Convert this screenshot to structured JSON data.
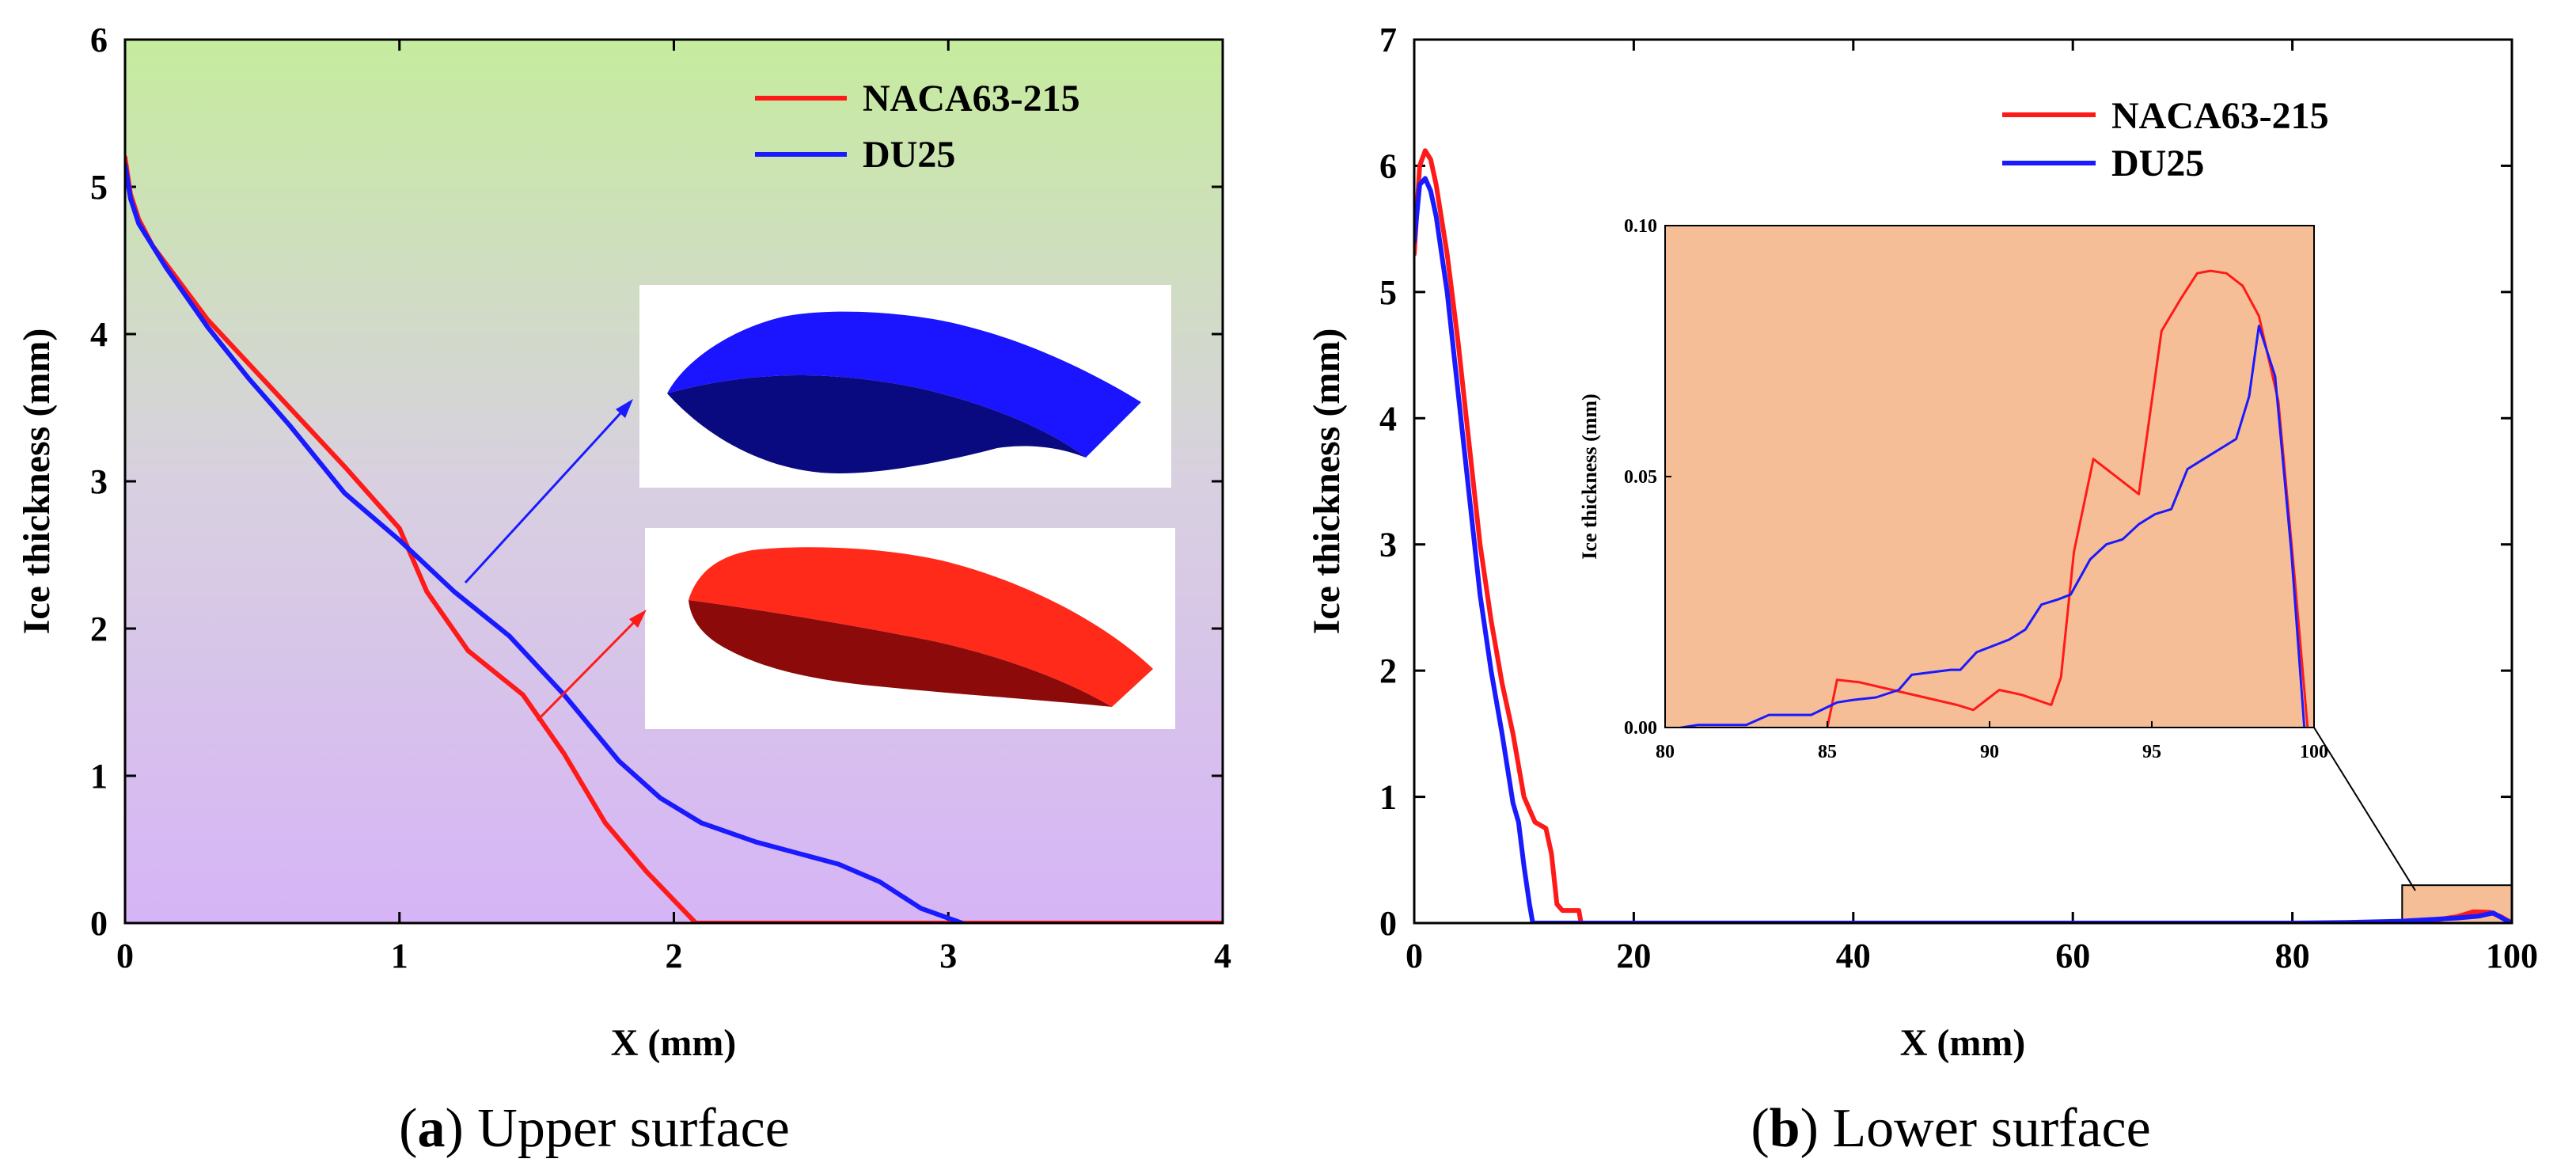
{
  "colors": {
    "naca": "#ff1a1a",
    "du": "#1a1aff",
    "bg_top": "#c6ec9e",
    "bg_mid": "#d8d0e0",
    "bg_bottom": "#d6b4f6",
    "inset_bg": "#f6be96",
    "naca_foil_light": "#ff2a1a",
    "naca_foil_dark": "#8c0a0a",
    "du_foil_light": "#1a14ff",
    "du_foil_dark": "#0a0a80"
  },
  "panels": {
    "a": {
      "caption_letter": "a",
      "caption_text": "Upper surface"
    },
    "b": {
      "caption_letter": "b",
      "caption_text": "Lower surface"
    }
  },
  "chart_data": [
    {
      "id": "a",
      "type": "line",
      "title": "(a) Upper surface",
      "xlabel": "X (mm)",
      "ylabel": "Ice thickness (mm)",
      "xlim": [
        0,
        4
      ],
      "ylim": [
        0,
        6
      ],
      "xticks": [
        0,
        1,
        2,
        3,
        4
      ],
      "yticks": [
        0,
        1,
        2,
        3,
        4,
        5,
        6
      ],
      "legend_position": "top-right",
      "background": "vertical gradient green-top to purple-bottom",
      "series": [
        {
          "name": "NACA63-215",
          "x": [
            0,
            0.02,
            0.05,
            0.1,
            0.2,
            0.3,
            0.45,
            0.6,
            0.8,
            1.0,
            1.1,
            1.25,
            1.45,
            1.6,
            1.75,
            1.9,
            2.08,
            2.5,
            3.0,
            3.5,
            4.0
          ],
          "y": [
            5.2,
            4.95,
            4.78,
            4.6,
            4.35,
            4.1,
            3.8,
            3.5,
            3.1,
            2.68,
            2.25,
            1.85,
            1.55,
            1.15,
            0.68,
            0.35,
            0.0,
            0.0,
            0.0,
            0.0,
            0.0
          ]
        },
        {
          "name": "DU25",
          "x": [
            0,
            0.02,
            0.05,
            0.15,
            0.3,
            0.45,
            0.6,
            0.8,
            1.0,
            1.2,
            1.4,
            1.6,
            1.8,
            1.95,
            2.1,
            2.3,
            2.5,
            2.6,
            2.75,
            2.9,
            3.05
          ],
          "y": [
            5.15,
            4.92,
            4.75,
            4.45,
            4.05,
            3.7,
            3.38,
            2.92,
            2.6,
            2.25,
            1.95,
            1.55,
            1.1,
            0.85,
            0.68,
            0.55,
            0.45,
            0.4,
            0.28,
            0.1,
            0.0
          ]
        }
      ],
      "annotations": [
        {
          "label": "DU25 iced airfoil rendering",
          "target": [
            1.25,
            2.32
          ]
        },
        {
          "label": "NACA63-215 iced airfoil rendering",
          "target": [
            1.5,
            1.4
          ]
        }
      ]
    },
    {
      "id": "b",
      "type": "line",
      "title": "(b) Lower surface",
      "xlabel": "X (mm)",
      "ylabel": "Ice thickness (mm)",
      "xlim": [
        0,
        100
      ],
      "ylim": [
        0,
        7
      ],
      "xticks": [
        0,
        20,
        40,
        60,
        80,
        100
      ],
      "yticks": [
        0,
        1,
        2,
        3,
        4,
        5,
        6,
        7
      ],
      "legend_position": "top-right",
      "series": [
        {
          "name": "NACA63-215",
          "x": [
            0,
            0.5,
            1,
            1.5,
            2,
            3,
            4,
            5,
            6,
            7,
            8,
            9,
            10,
            11,
            12,
            12.5,
            13,
            13.5,
            14,
            15,
            15.2,
            20,
            40,
            60,
            80,
            90,
            92,
            95,
            96.5,
            98,
            99,
            100
          ],
          "y": [
            5.3,
            6.0,
            6.12,
            6.05,
            5.85,
            5.3,
            4.6,
            3.8,
            3.0,
            2.4,
            1.9,
            1.5,
            1.0,
            0.8,
            0.75,
            0.55,
            0.15,
            0.1,
            0.1,
            0.1,
            0.0,
            0.0,
            0.0,
            0.0,
            0.0,
            0.0,
            0.01,
            0.05,
            0.09,
            0.085,
            0.05,
            0.0
          ]
        },
        {
          "name": "DU25",
          "x": [
            0,
            0.5,
            1,
            1.5,
            2,
            3,
            4,
            5,
            6,
            7,
            8,
            9,
            9.5,
            10,
            10.5,
            10.8,
            20,
            40,
            60,
            80,
            85,
            90,
            93,
            95,
            97,
            98.3,
            99.3,
            100
          ],
          "y": [
            5.4,
            5.85,
            5.9,
            5.8,
            5.6,
            5.0,
            4.2,
            3.4,
            2.6,
            2.0,
            1.5,
            0.95,
            0.8,
            0.45,
            0.15,
            0.0,
            0.0,
            0.0,
            0.0,
            0.0,
            0.005,
            0.015,
            0.03,
            0.04,
            0.055,
            0.08,
            0.03,
            0.0
          ]
        }
      ],
      "highlight_region": {
        "x": [
          90,
          100
        ],
        "y": [
          0,
          0.3
        ]
      },
      "inset": {
        "type": "line",
        "xlabel": "",
        "ylabel": "Ice thickness (mm)",
        "xlim": [
          80,
          100
        ],
        "ylim": [
          0,
          0.1
        ],
        "xticks": [
          80,
          85,
          90,
          95,
          100
        ],
        "yticks": [
          0.0,
          0.05,
          0.1
        ],
        "ytick_labels": [
          "0.00",
          "0.05",
          "0.10"
        ],
        "series": [
          {
            "name": "NACA63-215",
            "x": [
              85,
              85.3,
              86,
              87,
              88,
              89,
              89.5,
              90,
              90.3,
              91,
              91.9,
              92.2,
              92.6,
              93.2,
              94.6,
              95.3,
              95.9,
              96.4,
              96.8,
              97.3,
              97.8,
              98.3,
              98.9,
              99.4,
              99.8
            ],
            "y": [
              0.0,
              0.0095,
              0.009,
              0.0075,
              0.006,
              0.0045,
              0.0035,
              0.006,
              0.0075,
              0.0065,
              0.0045,
              0.01,
              0.035,
              0.0535,
              0.0465,
              0.079,
              0.0855,
              0.0905,
              0.091,
              0.0905,
              0.088,
              0.082,
              0.065,
              0.03,
              0.0
            ]
          },
          {
            "name": "DU25",
            "x": [
              80.5,
              81,
              82.5,
              83.2,
              84.5,
              85.3,
              85.8,
              86.5,
              87.2,
              87.6,
              88.2,
              88.8,
              89.1,
              89.6,
              90.2,
              90.6,
              91.1,
              91.6,
              92.1,
              92.5,
              93.1,
              93.6,
              94.1,
              94.6,
              95.1,
              95.6,
              96.1,
              96.6,
              97.1,
              97.6,
              98.0,
              98.3,
              98.8,
              99.3,
              99.7
            ],
            "y": [
              0.0,
              0.0005,
              0.0005,
              0.0025,
              0.0025,
              0.005,
              0.0055,
              0.006,
              0.0075,
              0.0105,
              0.011,
              0.0115,
              0.0115,
              0.015,
              0.0165,
              0.0175,
              0.0195,
              0.0245,
              0.0255,
              0.0265,
              0.0335,
              0.0365,
              0.0375,
              0.0405,
              0.0425,
              0.0435,
              0.0515,
              0.0535,
              0.0555,
              0.0575,
              0.066,
              0.08,
              0.07,
              0.035,
              0.0
            ]
          }
        ]
      }
    }
  ]
}
